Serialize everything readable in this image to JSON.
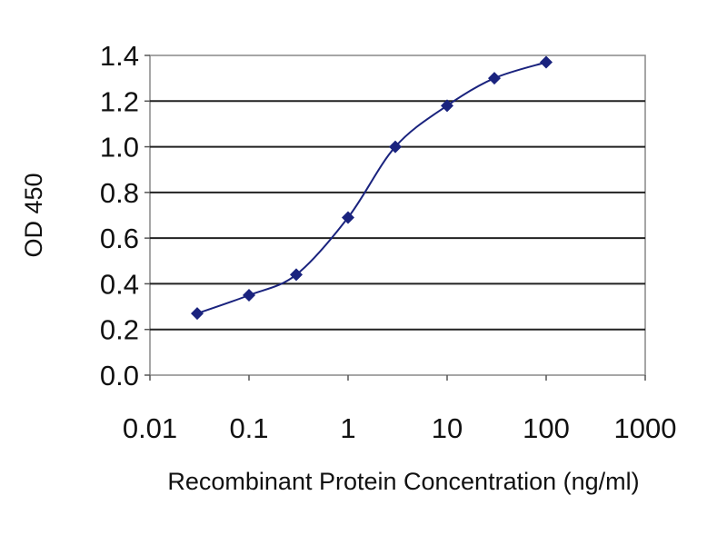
{
  "chart_data": {
    "type": "line",
    "title": "",
    "xlabel": "Recombinant Protein Concentration (ng/ml)",
    "ylabel": "OD 450",
    "x_scale": "log",
    "xlim": [
      0.01,
      1000
    ],
    "ylim": [
      0.0,
      1.4
    ],
    "x_ticks": [
      0.01,
      0.1,
      1,
      10,
      100,
      1000
    ],
    "x_tick_labels": [
      "0.01",
      "0.1",
      "1",
      "10",
      "100",
      "1000"
    ],
    "y_ticks": [
      0.0,
      0.2,
      0.4,
      0.6,
      0.8,
      1.0,
      1.2,
      1.4
    ],
    "y_tick_labels": [
      "0.0",
      "0.2",
      "0.4",
      "0.6",
      "0.8",
      "1.0",
      "1.2",
      "1.4"
    ],
    "grid": "horizontal",
    "legend": "none",
    "series": [
      {
        "x": [
          0.03,
          0.1,
          0.3,
          1,
          3,
          10,
          30,
          100
        ],
        "y": [
          0.27,
          0.35,
          0.44,
          0.69,
          1.0,
          1.18,
          1.3,
          1.37
        ],
        "color": "#1a237e",
        "marker": "diamond"
      }
    ]
  }
}
